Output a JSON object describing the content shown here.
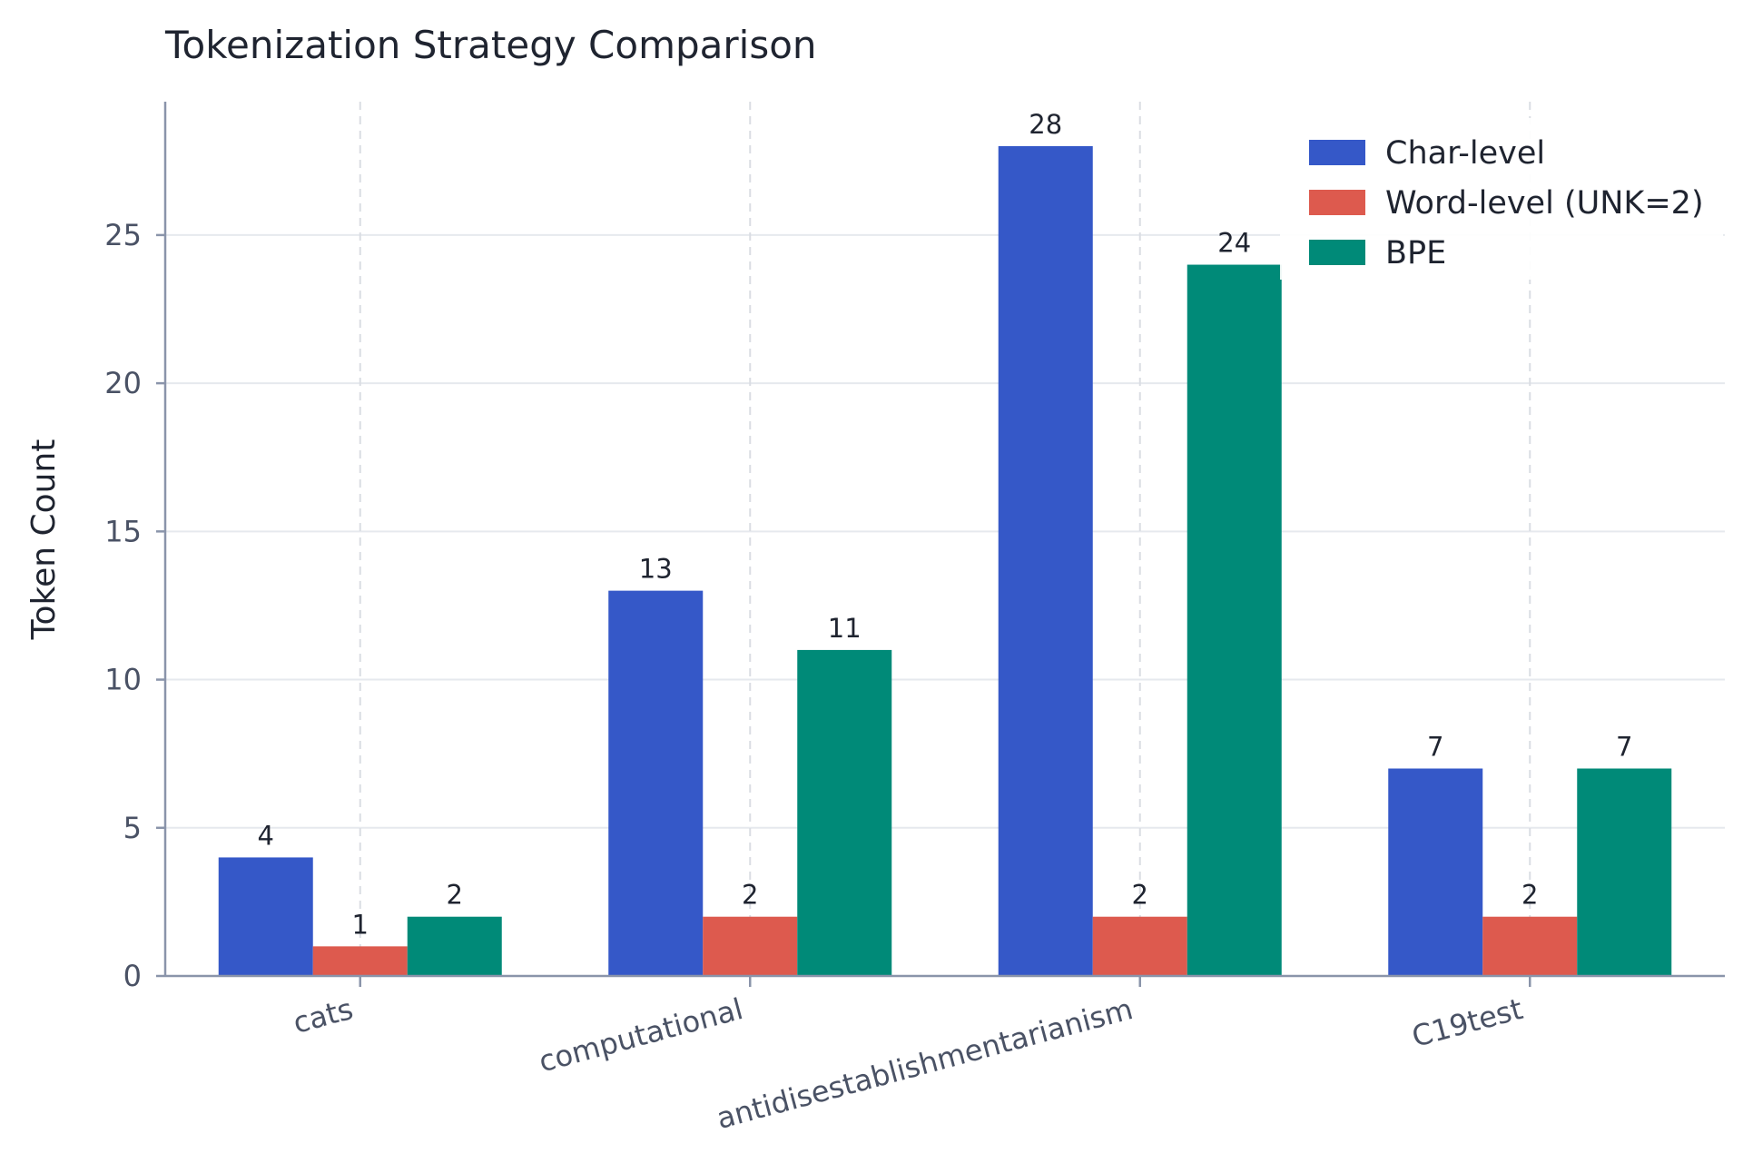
{
  "chart_data": {
    "type": "bar",
    "title": "Tokenization Strategy Comparison",
    "xlabel": "",
    "ylabel": "Token Count",
    "categories": [
      "cats",
      "computational",
      "antidisestablishmentarianism",
      "C19test"
    ],
    "series": [
      {
        "name": "Char-level",
        "color": "#3558c8",
        "values": [
          4,
          13,
          28,
          7
        ]
      },
      {
        "name": "Word-level (UNK=2)",
        "color": "#dd5a4e",
        "values": [
          1,
          2,
          2,
          2
        ]
      },
      {
        "name": "BPE",
        "color": "#008a78",
        "values": [
          2,
          11,
          24,
          7
        ]
      }
    ],
    "ylim": [
      0,
      29.5
    ],
    "yticks": [
      0,
      5,
      10,
      15,
      20,
      25
    ],
    "grid": true,
    "legend_position": "top-right",
    "data_labels": true,
    "colors": {
      "axis": "#8a94aa",
      "grid": "#e6e9ee",
      "vgrid": "#dadde3",
      "text": "#1f2430",
      "tick_text": "#4a5265"
    }
  }
}
